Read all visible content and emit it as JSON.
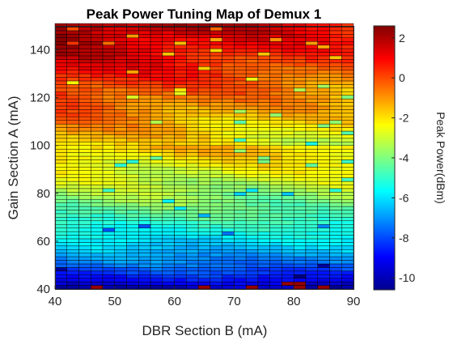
{
  "chart_data": {
    "type": "heatmap",
    "title": "Peak Power Tuning Map of Demux 1",
    "xlabel": "DBR Section B (mA)",
    "ylabel": "Gain Section A (mA)",
    "colorbar_label": "Peak Power(dBm)",
    "colormap": "jet",
    "xlim": [
      40,
      90
    ],
    "ylim": [
      40,
      150
    ],
    "clim": [
      -10.6,
      2.6
    ],
    "x_ticks": [
      "40",
      "50",
      "60",
      "70",
      "80",
      "90"
    ],
    "y_ticks": [
      "40",
      "60",
      "80",
      "100",
      "120",
      "140"
    ],
    "colorbar_ticks": [
      "2",
      "0",
      "-2",
      "-4",
      "-6",
      "-8",
      "-10"
    ],
    "grid": {
      "x_start": 40,
      "x_step": 2,
      "x_count": 26,
      "y_start": 40,
      "y_step": 1.5,
      "y_count": 74
    },
    "peak_power_model": {
      "description": "Peak power rises with gain current A, with diagonal tuning bands along DBR current B",
      "low_edge_value": -10.5,
      "high_edge_value": 2.5
    }
  }
}
